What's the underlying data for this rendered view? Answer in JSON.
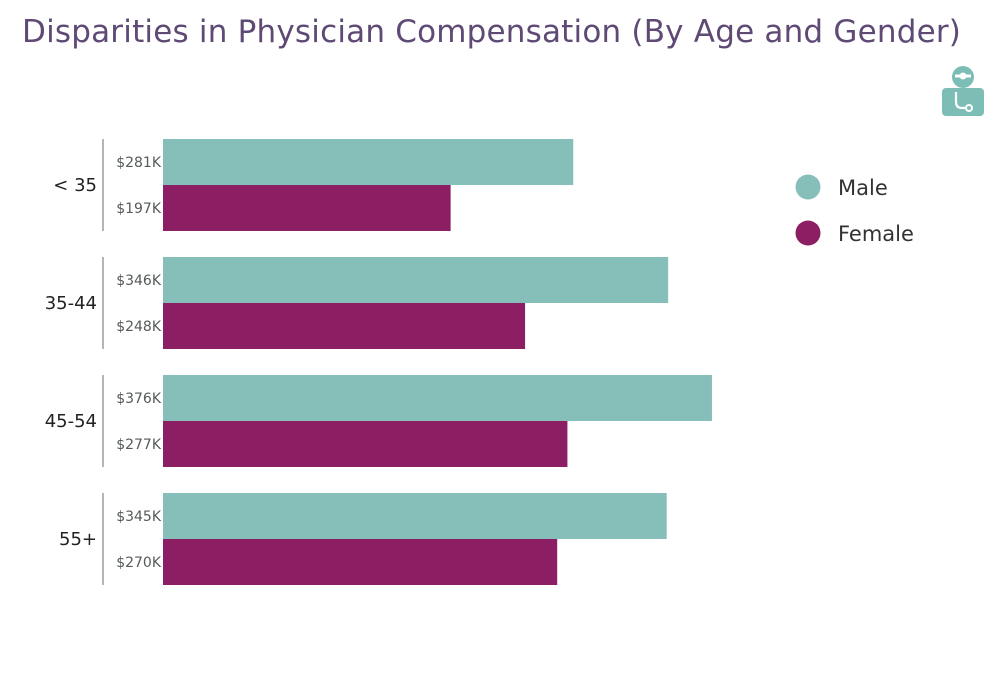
{
  "colors": {
    "title": "#5e4a75",
    "male": "#86bfb9",
    "female": "#8c1f64",
    "axis": "#b5b5b5",
    "icon": "#7cbdb6"
  },
  "icon": "doctor-stethoscope-icon",
  "chart_data": {
    "type": "bar",
    "orientation": "horizontal",
    "title": "Disparities in Physician Compensation (By Age and Gender)",
    "categories": [
      "< 35",
      "35-44",
      "45-54",
      "55+"
    ],
    "series": [
      {
        "name": "Male",
        "values": [
          281,
          346,
          376,
          345
        ],
        "labels": [
          "$281K",
          "$346K",
          "$376K",
          "$345K"
        ]
      },
      {
        "name": "Female",
        "values": [
          197,
          248,
          277,
          270
        ],
        "labels": [
          "$197K",
          "$248K",
          "$277K",
          "$270K"
        ]
      }
    ],
    "unit": "$K",
    "xlim": [
      0,
      400
    ],
    "grid": false,
    "legend_position": "right"
  }
}
